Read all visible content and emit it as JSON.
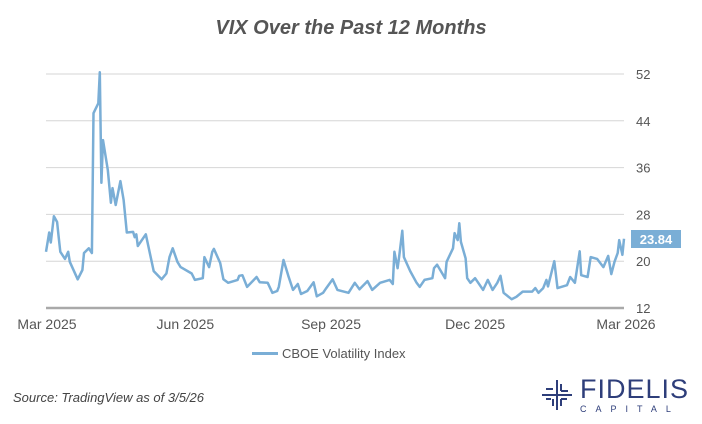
{
  "chart_data": {
    "type": "line",
    "title": "VIX Over the Past 12 Months",
    "xlabel": "",
    "ylabel": "",
    "xlim": [
      "2025-03-05",
      "2026-03-05"
    ],
    "ylim": [
      12,
      52
    ],
    "y_ticks": [
      12,
      20,
      28,
      36,
      44,
      52
    ],
    "x_ticks": [
      {
        "date": "2025-03-01",
        "label": "Mar 2025"
      },
      {
        "date": "2025-06-01",
        "label": "Jun 2025"
      },
      {
        "date": "2025-09-01",
        "label": "Sep 2025"
      },
      {
        "date": "2025-12-01",
        "label": "Dec 2025"
      },
      {
        "date": "2026-03-01",
        "label": "Mar 2026"
      }
    ],
    "grid": "horizontal",
    "y_axis_side": "right",
    "legend_position": "bottom",
    "last_value_label": "23.84",
    "series": [
      {
        "name": "CBOE Volatility Index",
        "color": "#7aaed6",
        "points": [
          [
            "2025-03-05",
            21.6
          ],
          [
            "2025-03-07",
            24.9
          ],
          [
            "2025-03-08",
            23.2
          ],
          [
            "2025-03-10",
            27.7
          ],
          [
            "2025-03-12",
            26.7
          ],
          [
            "2025-03-13",
            24.1
          ],
          [
            "2025-03-14",
            21.6
          ],
          [
            "2025-03-17",
            20.4
          ],
          [
            "2025-03-19",
            21.6
          ],
          [
            "2025-03-20",
            19.9
          ],
          [
            "2025-03-25",
            16.9
          ],
          [
            "2025-03-28",
            18.5
          ],
          [
            "2025-03-29",
            21.4
          ],
          [
            "2025-04-01",
            22.2
          ],
          [
            "2025-04-03",
            21.4
          ],
          [
            "2025-04-04",
            45.3
          ],
          [
            "2025-04-07",
            47.0
          ],
          [
            "2025-04-08",
            52.3
          ],
          [
            "2025-04-09",
            33.4
          ],
          [
            "2025-04-10",
            40.7
          ],
          [
            "2025-04-13",
            35.6
          ],
          [
            "2025-04-15",
            30.0
          ],
          [
            "2025-04-16",
            32.5
          ],
          [
            "2025-04-18",
            29.6
          ],
          [
            "2025-04-21",
            33.7
          ],
          [
            "2025-04-23",
            30.5
          ],
          [
            "2025-04-25",
            24.9
          ],
          [
            "2025-04-29",
            25.0
          ],
          [
            "2025-04-30",
            24.1
          ],
          [
            "2025-05-01",
            24.6
          ],
          [
            "2025-05-02",
            22.6
          ],
          [
            "2025-05-07",
            24.6
          ],
          [
            "2025-05-12",
            18.3
          ],
          [
            "2025-05-17",
            16.9
          ],
          [
            "2025-05-20",
            17.9
          ],
          [
            "2025-05-22",
            20.7
          ],
          [
            "2025-05-24",
            22.2
          ],
          [
            "2025-05-27",
            19.9
          ],
          [
            "2025-05-29",
            19.0
          ],
          [
            "2025-06-05",
            17.9
          ],
          [
            "2025-06-07",
            16.8
          ],
          [
            "2025-06-12",
            17.1
          ],
          [
            "2025-06-13",
            20.7
          ],
          [
            "2025-06-16",
            19.0
          ],
          [
            "2025-06-18",
            21.6
          ],
          [
            "2025-06-19",
            22.1
          ],
          [
            "2025-06-23",
            19.7
          ],
          [
            "2025-06-25",
            16.9
          ],
          [
            "2025-06-28",
            16.3
          ],
          [
            "2025-07-04",
            16.8
          ],
          [
            "2025-07-05",
            17.5
          ],
          [
            "2025-07-07",
            17.6
          ],
          [
            "2025-07-10",
            15.6
          ],
          [
            "2025-07-16",
            17.3
          ],
          [
            "2025-07-18",
            16.4
          ],
          [
            "2025-07-23",
            16.3
          ],
          [
            "2025-07-26",
            14.6
          ],
          [
            "2025-07-29",
            14.9
          ],
          [
            "2025-07-30",
            15.6
          ],
          [
            "2025-08-02",
            20.2
          ],
          [
            "2025-08-05",
            17.5
          ],
          [
            "2025-08-08",
            15.1
          ],
          [
            "2025-08-11",
            16.1
          ],
          [
            "2025-08-13",
            14.4
          ],
          [
            "2025-08-17",
            14.9
          ],
          [
            "2025-08-21",
            16.4
          ],
          [
            "2025-08-23",
            14.0
          ],
          [
            "2025-08-27",
            14.6
          ],
          [
            "2025-08-29",
            15.4
          ],
          [
            "2025-09-02",
            16.9
          ],
          [
            "2025-09-05",
            15.1
          ],
          [
            "2025-09-12",
            14.6
          ],
          [
            "2025-09-16",
            16.3
          ],
          [
            "2025-09-19",
            15.2
          ],
          [
            "2025-09-24",
            16.6
          ],
          [
            "2025-09-27",
            15.1
          ],
          [
            "2025-10-02",
            16.3
          ],
          [
            "2025-10-08",
            16.8
          ],
          [
            "2025-10-10",
            16.1
          ],
          [
            "2025-10-11",
            21.6
          ],
          [
            "2025-10-13",
            18.8
          ],
          [
            "2025-10-14",
            20.7
          ],
          [
            "2025-10-16",
            25.2
          ],
          [
            "2025-10-17",
            20.7
          ],
          [
            "2025-10-21",
            18.3
          ],
          [
            "2025-10-25",
            16.3
          ],
          [
            "2025-10-27",
            15.6
          ],
          [
            "2025-10-30",
            16.8
          ],
          [
            "2025-11-04",
            17.1
          ],
          [
            "2025-11-05",
            18.8
          ],
          [
            "2025-11-07",
            19.4
          ],
          [
            "2025-11-12",
            17.1
          ],
          [
            "2025-11-13",
            19.9
          ],
          [
            "2025-11-17",
            22.2
          ],
          [
            "2025-11-18",
            24.8
          ],
          [
            "2025-11-20",
            23.6
          ],
          [
            "2025-11-21",
            26.5
          ],
          [
            "2025-11-22",
            23.3
          ],
          [
            "2025-11-25",
            20.5
          ],
          [
            "2025-11-26",
            17.1
          ],
          [
            "2025-11-28",
            16.3
          ],
          [
            "2025-12-01",
            17.1
          ],
          [
            "2025-12-06",
            15.1
          ],
          [
            "2025-12-09",
            16.8
          ],
          [
            "2025-12-12",
            15.1
          ],
          [
            "2025-12-15",
            16.3
          ],
          [
            "2025-12-17",
            17.5
          ],
          [
            "2025-12-19",
            14.6
          ],
          [
            "2025-12-24",
            13.5
          ],
          [
            "2025-12-27",
            13.9
          ],
          [
            "2025-12-31",
            14.8
          ],
          [
            "2026-01-06",
            14.8
          ],
          [
            "2026-01-08",
            15.4
          ],
          [
            "2026-01-10",
            14.6
          ],
          [
            "2026-01-13",
            15.4
          ],
          [
            "2026-01-15",
            16.8
          ],
          [
            "2026-01-16",
            15.7
          ],
          [
            "2026-01-20",
            20.0
          ],
          [
            "2026-01-22",
            15.4
          ],
          [
            "2026-01-28",
            15.9
          ],
          [
            "2026-01-30",
            17.3
          ],
          [
            "2026-02-02",
            16.3
          ],
          [
            "2026-02-05",
            21.7
          ],
          [
            "2026-02-06",
            17.6
          ],
          [
            "2026-02-10",
            17.3
          ],
          [
            "2026-02-12",
            20.7
          ],
          [
            "2026-02-16",
            20.4
          ],
          [
            "2026-02-20",
            19.0
          ],
          [
            "2026-02-23",
            20.9
          ],
          [
            "2026-02-25",
            17.8
          ],
          [
            "2026-02-27",
            19.9
          ],
          [
            "2026-03-01",
            21.4
          ],
          [
            "2026-03-02",
            23.6
          ],
          [
            "2026-03-04",
            21.1
          ],
          [
            "2026-03-05",
            23.84
          ]
        ]
      }
    ]
  },
  "source": "Source: TradingView as of 3/5/26",
  "logo": {
    "name": "FIDELIS",
    "sub": "CAPITAL"
  }
}
